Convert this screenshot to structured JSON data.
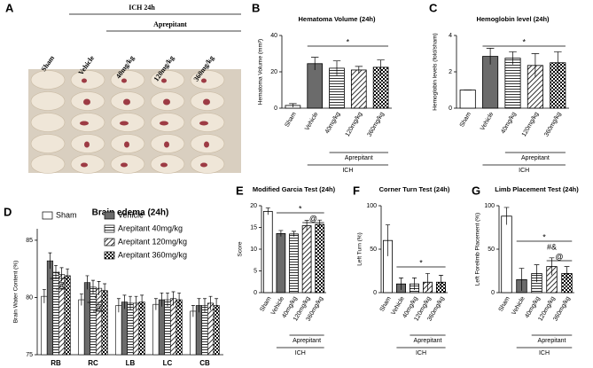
{
  "panel_a": {
    "label": "A",
    "header": "ICH 24h",
    "group": "Aprepitant",
    "columns": [
      "Sham",
      "Vehicle",
      "40mg/kg",
      "120mg/kg",
      "360mg/kg"
    ]
  },
  "chart_data": [
    {
      "type": "bar",
      "panel": "B",
      "title": "Hematoma Volume (24h)",
      "ylabel": "Hematoma Volume (mm³)",
      "categories": [
        "Sham",
        "Vehicle",
        "40mg/kg",
        "120mg/kg",
        "360mg/kg"
      ],
      "values": [
        1.5,
        24.5,
        22,
        21,
        22.5
      ],
      "errors": [
        1,
        3.5,
        4,
        2,
        4
      ],
      "patterns": [
        "white",
        "gray",
        "horizontal",
        "diagonal",
        "checker"
      ],
      "ylim": [
        0,
        40
      ],
      "yticks": [
        0,
        20,
        40
      ],
      "group_labels": [
        "Aprepitant",
        "ICH"
      ],
      "annotations": [
        "*"
      ]
    },
    {
      "type": "bar",
      "panel": "C",
      "title": "Hemoglobin level (24h)",
      "ylabel": "Hemoglobin levels (fold/sham)",
      "categories": [
        "Sham",
        "Vehicle",
        "40mg/kg",
        "120mg/kg",
        "360mg/kg"
      ],
      "values": [
        1.0,
        2.85,
        2.75,
        2.35,
        2.5
      ],
      "errors": [
        0,
        0.45,
        0.35,
        0.65,
        0.6
      ],
      "patterns": [
        "white",
        "gray",
        "horizontal",
        "diagonal",
        "checker"
      ],
      "ylim": [
        0,
        4
      ],
      "yticks": [
        0,
        2,
        4
      ],
      "group_labels": [
        "Aprepitant",
        "ICH"
      ],
      "annotations": [
        "*"
      ]
    },
    {
      "type": "grouped_bar",
      "panel": "D",
      "title": "Brain edema (24h)",
      "ylabel": "Brain Water Content (%)",
      "categories": [
        "RB",
        "RC",
        "LB",
        "LC",
        "CB"
      ],
      "series": [
        {
          "name": "Sham",
          "pattern": "white",
          "values": [
            80.1,
            79.8,
            79.3,
            79.4,
            78.8
          ],
          "errors": [
            0.6,
            0.5,
            0.6,
            0.5,
            0.5
          ]
        },
        {
          "name": "Vehicle",
          "pattern": "gray",
          "values": [
            83.2,
            81.3,
            79.6,
            79.8,
            79.3
          ],
          "errors": [
            0.7,
            0.6,
            0.6,
            0.6,
            0.6
          ]
        },
        {
          "name": "Arepitant 40mg/kg",
          "pattern": "horizontal",
          "values": [
            82.2,
            80.9,
            79.5,
            79.8,
            79.3
          ],
          "errors": [
            0.6,
            0.6,
            0.6,
            0.6,
            0.6
          ]
        },
        {
          "name": "Arepitant 120mg/kg",
          "pattern": "diagonal",
          "values": [
            82.0,
            80.8,
            79.5,
            79.9,
            79.5
          ],
          "errors": [
            0.6,
            0.6,
            0.6,
            0.6,
            0.6
          ]
        },
        {
          "name": "Arepitant 360mg/kg",
          "pattern": "checker",
          "values": [
            81.9,
            80.6,
            79.6,
            79.8,
            79.3
          ],
          "errors": [
            0.6,
            0.6,
            0.6,
            0.6,
            0.6
          ]
        }
      ],
      "ylim": [
        75,
        86
      ],
      "yticks": [
        75,
        80,
        85
      ],
      "annotations": [
        "*",
        "@",
        "*",
        "@"
      ]
    },
    {
      "type": "bar",
      "panel": "E",
      "title": "Modified Garcia Test (24h)",
      "ylabel": "Score",
      "categories": [
        "Sham",
        "Vehicle",
        "40mg/kg",
        "120mg/kg",
        "360mg/kg"
      ],
      "values": [
        18.7,
        13.6,
        13.5,
        15.4,
        15.7
      ],
      "errors": [
        0.8,
        0.7,
        0.6,
        1.2,
        1.0
      ],
      "patterns": [
        "white",
        "gray",
        "horizontal",
        "diagonal",
        "checker"
      ],
      "ylim": [
        0,
        20
      ],
      "yticks": [
        0,
        5,
        10,
        15,
        20
      ],
      "group_labels": [
        "Aprepitant",
        "ICH"
      ],
      "annotations": [
        "*",
        "@"
      ]
    },
    {
      "type": "bar",
      "panel": "F",
      "title": "Corner Turn Test (24h)",
      "ylabel": "Left Turn (%)",
      "categories": [
        "Sham",
        "Vehicle",
        "40mg/kg",
        "120mg/kg",
        "360mg/kg"
      ],
      "values": [
        60,
        10,
        10,
        12,
        12
      ],
      "errors": [
        18,
        7,
        7,
        10,
        8
      ],
      "patterns": [
        "white",
        "gray",
        "horizontal",
        "diagonal",
        "checker"
      ],
      "ylim": [
        0,
        100
      ],
      "yticks": [
        0,
        50,
        100
      ],
      "group_labels": [
        "Aprepitant",
        "ICH"
      ],
      "annotations": [
        "*"
      ]
    },
    {
      "type": "bar",
      "panel": "G",
      "title": "Limb Placement Test (24h)",
      "ylabel": "Left Forelimb Placement (%)",
      "categories": [
        "Sham",
        "Vehicle",
        "40mg/kg",
        "120mg/kg",
        "360mg/kg"
      ],
      "values": [
        88,
        15,
        22,
        30,
        22
      ],
      "errors": [
        10,
        13,
        10,
        10,
        8
      ],
      "patterns": [
        "white",
        "gray",
        "horizontal",
        "diagonal",
        "checker"
      ],
      "ylim": [
        0,
        100
      ],
      "yticks": [
        0,
        50,
        100
      ],
      "group_labels": [
        "Aprepitant",
        "ICH"
      ],
      "annotations": [
        "*",
        "#&",
        "@"
      ]
    }
  ]
}
